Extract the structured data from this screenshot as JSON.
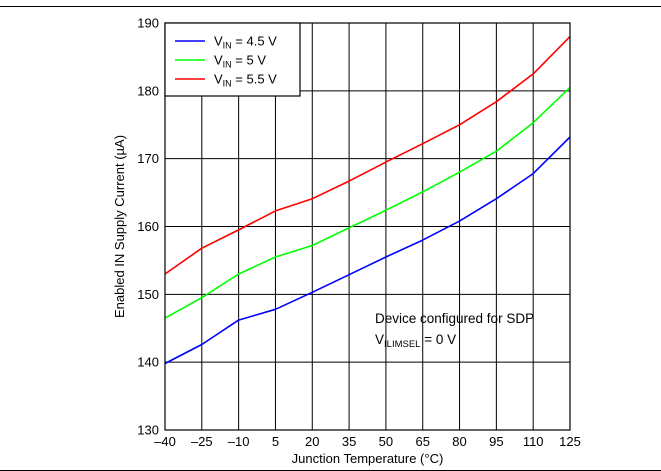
{
  "chart_data": {
    "type": "line",
    "xlabel": "Junction Temperature (°C)",
    "ylabel": "Enabled IN Supply Current (µA)",
    "x": [
      -40,
      -25,
      -10,
      5,
      20,
      35,
      50,
      65,
      80,
      95,
      110,
      125
    ],
    "x_tick_labels": [
      "–40",
      "–25",
      "–10",
      "5",
      "20",
      "35",
      "50",
      "65",
      "80",
      "95",
      "110",
      "125"
    ],
    "xlim": [
      -40,
      125
    ],
    "ylim": [
      130,
      190
    ],
    "y_ticks": [
      130,
      140,
      150,
      160,
      170,
      180,
      190
    ],
    "grid": true,
    "legend_position": "top-left",
    "series": [
      {
        "name_main": "V",
        "name_sub": "IN",
        "name_rest": " = 4.5 V",
        "color": "#0000ff",
        "values": [
          139.8,
          142.6,
          146.2,
          147.8,
          150.3,
          152.9,
          155.5,
          158.0,
          160.8,
          164.1,
          167.8,
          173.2
        ]
      },
      {
        "name_main": "V",
        "name_sub": "IN",
        "name_rest": " = 5 V",
        "color": "#00ff00",
        "values": [
          146.5,
          149.5,
          153.0,
          155.5,
          157.2,
          159.8,
          162.4,
          165.1,
          168.0,
          171.1,
          175.3,
          180.5
        ]
      },
      {
        "name_main": "V",
        "name_sub": "IN",
        "name_rest": " = 5.5 V",
        "color": "#ff0000",
        "values": [
          153.0,
          156.8,
          159.5,
          162.3,
          164.1,
          166.7,
          169.5,
          172.2,
          175.0,
          178.4,
          182.5,
          188.0
        ]
      }
    ],
    "annotation": {
      "line1": "Device configured for SDP",
      "line2_main": "V",
      "line2_sub": "ILIMSEL",
      "line2_rest": " = 0 V"
    }
  }
}
